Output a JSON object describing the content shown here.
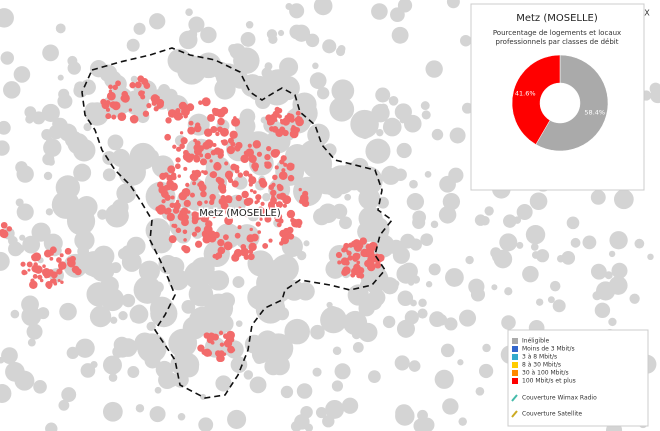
{
  "map": {
    "place_label": "Metz (MOSELLE)"
  },
  "popup": {
    "close": "X",
    "title": "Metz (MOSELLE)",
    "subtitle_lines": [
      "Pourcentage de logements et locaux",
      "professionnels par classes de débit"
    ],
    "chart": {
      "type": "pie",
      "values": [
        58.4,
        41.6
      ],
      "value_labels": [
        "58.4%",
        "41.6%"
      ],
      "colors": [
        "#aaaaaa",
        "#ff0000"
      ]
    }
  },
  "legend": {
    "items": [
      {
        "label": "Inéligible",
        "color": "#aaaaaa"
      },
      {
        "label": "Moins de 3 Mbit/s",
        "color": "#3366cc"
      },
      {
        "label": "3 à 8 Mbit/s",
        "color": "#33aacc"
      },
      {
        "label": "8 à 30 Mbit/s",
        "color": "#ffcc00"
      },
      {
        "label": "30 à 100 Mbit/s",
        "color": "#ff8800"
      },
      {
        "label": "100 Mbit/s et plus",
        "color": "#ff0000"
      }
    ],
    "lines": [
      {
        "label": "Couverture Wimax Radio",
        "color": "#44bbaa"
      },
      {
        "label": "Couverture Satellite",
        "color": "#ccaa22"
      }
    ]
  }
}
